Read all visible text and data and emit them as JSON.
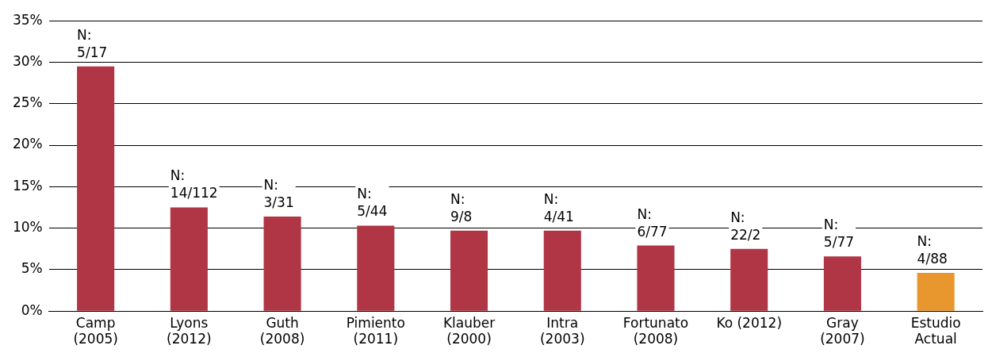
{
  "chart_data": {
    "type": "bar",
    "categories": [
      "Camp (2005)",
      "Lyons (2012)",
      "Guth (2008)",
      "Pimiento (2011)",
      "Klauber (2000)",
      "Intra (2003)",
      "Fortunato (2008)",
      "Ko (2012)",
      "Gray (2007)",
      "Estudio Actual"
    ],
    "values": [
      29.5,
      12.5,
      11.4,
      10.3,
      9.7,
      9.7,
      7.9,
      7.5,
      6.6,
      4.6
    ],
    "colors": [
      "#b03545",
      "#b03545",
      "#b03545",
      "#b03545",
      "#b03545",
      "#b03545",
      "#b03545",
      "#b03545",
      "#b03545",
      "#e8972f"
    ],
    "value_labels": [
      "N: 5/17",
      "N: 14/112",
      "N: 3/31",
      "N: 5/44",
      "N: 9/8",
      "N: 4/41",
      "N: 6/77",
      "N: 22/2",
      "N: 5/77",
      "N: 4/88"
    ],
    "ylim": [
      0,
      35
    ],
    "yticks": [
      {
        "value": 0,
        "label": "0%"
      },
      {
        "value": 5,
        "label": "5%"
      },
      {
        "value": 10,
        "label": "10%"
      },
      {
        "value": 15,
        "label": "15%"
      },
      {
        "value": 20,
        "label": "20%"
      },
      {
        "value": 25,
        "label": "25%"
      },
      {
        "value": 30,
        "label": "30%"
      },
      {
        "value": 35,
        "label": "35%"
      }
    ],
    "grid": "y",
    "legend": false
  }
}
